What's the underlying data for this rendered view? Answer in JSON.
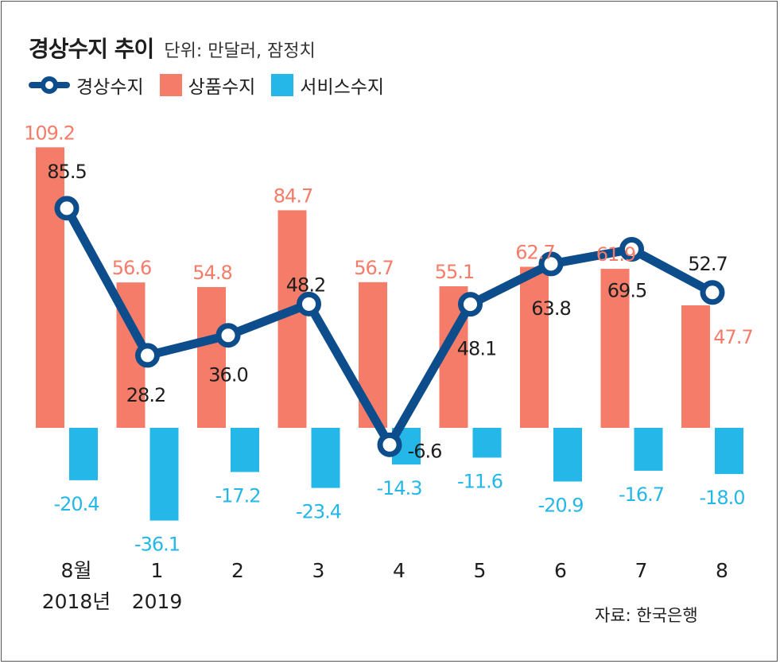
{
  "title": "경상수지 추이",
  "unit": "단위: 만달러, 잠정치",
  "legend": {
    "current_account": "경상수지",
    "goods": "상품수지",
    "services": "서비스수지"
  },
  "colors": {
    "current_account": "#0e4d8c",
    "goods": "#f47c68",
    "services": "#25b7e8",
    "text_dark": "#1e1e1e"
  },
  "source": "자료: 한국은행",
  "chart_data": {
    "type": "bar",
    "title": "경상수지 추이",
    "unit": "단위: 만달러, 잠정치",
    "categories": [
      "8월",
      "1",
      "2",
      "3",
      "4",
      "5",
      "6",
      "7",
      "8"
    ],
    "year_labels": [
      "2018년",
      "2019",
      "",
      "",
      "",
      "",
      "",
      "",
      ""
    ],
    "series": [
      {
        "name": "상품수지",
        "type": "bar",
        "values": [
          109.2,
          56.6,
          54.8,
          84.7,
          56.7,
          55.1,
          62.7,
          61.9,
          47.7
        ]
      },
      {
        "name": "서비스수지",
        "type": "bar",
        "values": [
          -20.4,
          -36.1,
          -17.2,
          -23.4,
          -14.3,
          -11.6,
          -20.9,
          -16.7,
          -18.0
        ]
      },
      {
        "name": "경상수지",
        "type": "line",
        "values": [
          85.5,
          28.2,
          36.0,
          48.2,
          -6.6,
          48.1,
          63.8,
          69.5,
          52.7
        ]
      }
    ],
    "value_labels": {
      "goods": [
        "109.2",
        "56.6",
        "54.8",
        "84.7",
        "56.7",
        "55.1",
        "62.7",
        "61.9",
        "47.7"
      ],
      "services": [
        "-20.4",
        "-36.1",
        "-17.2",
        "-23.4",
        "-14.3",
        "-11.6",
        "-20.9",
        "-16.7",
        "-18.0"
      ],
      "current_account": [
        "85.5",
        "28.2",
        "36.0",
        "48.2",
        "-6.6",
        "48.1",
        "63.8",
        "69.5",
        "52.7"
      ]
    },
    "grid": false,
    "legend_position": "top-left"
  }
}
